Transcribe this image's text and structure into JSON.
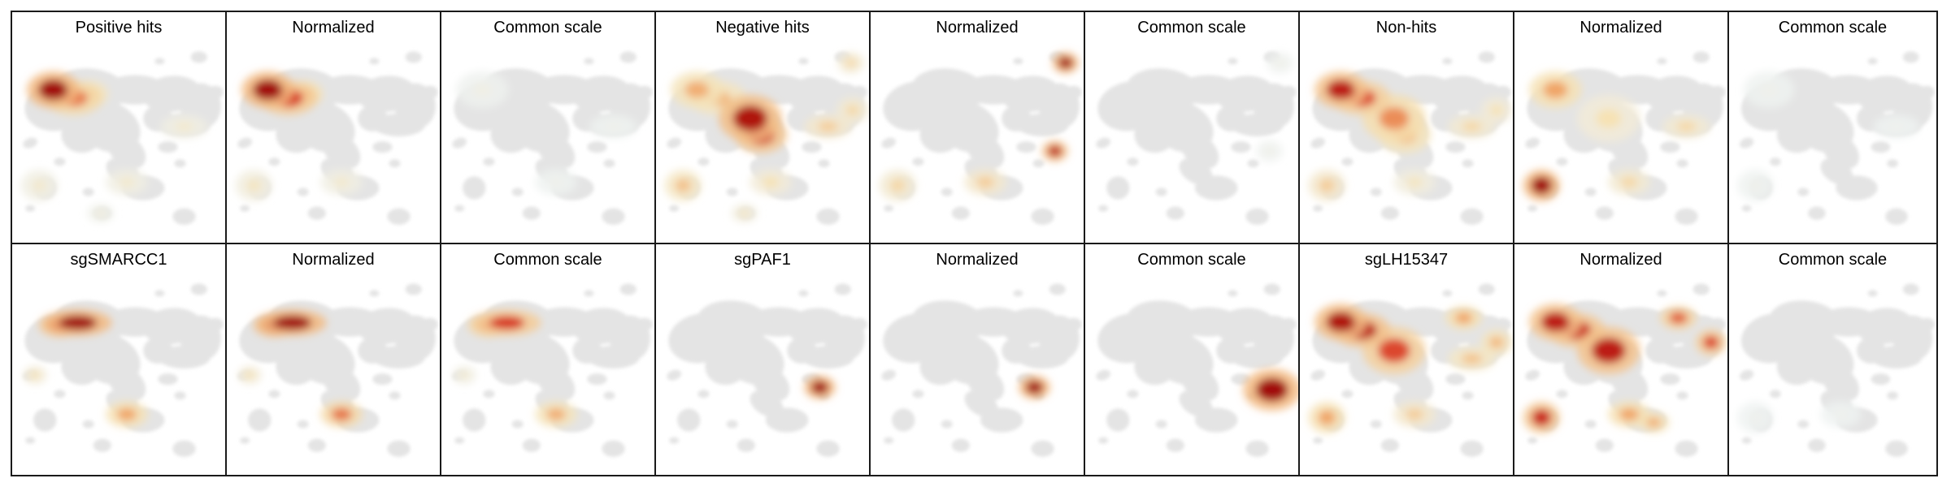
{
  "figure": {
    "rows": [
      [
        {
          "title": "Positive hits",
          "hotspots": [
            {
              "blob": "tl1",
              "level": 1.0
            },
            {
              "blob": "tl2",
              "level": 0.65
            },
            {
              "blob": "tl3",
              "level": 0.45
            },
            {
              "blob": "cm1",
              "level": 0.15
            },
            {
              "blob": "rl1",
              "level": 0.15
            },
            {
              "blob": "ll1",
              "level": 0.15
            },
            {
              "blob": "bt1",
              "level": 0.1
            }
          ]
        },
        {
          "title": "Normalized",
          "hotspots": [
            {
              "blob": "tl1",
              "level": 1.0
            },
            {
              "blob": "tl2",
              "level": 0.8
            },
            {
              "blob": "tl3",
              "level": 0.55
            },
            {
              "blob": "ll1",
              "level": 0.2
            },
            {
              "blob": "cm1",
              "level": 0.15
            }
          ]
        },
        {
          "title": "Common scale",
          "hotspots": [
            {
              "blob": "tl1",
              "level": 0.06
            },
            {
              "blob": "cm1",
              "level": 0.04
            },
            {
              "blob": "rl1",
              "level": 0.04
            }
          ]
        },
        {
          "title": "Negative hits",
          "hotspots": [
            {
              "blob": "cc1",
              "level": 0.95
            },
            {
              "blob": "cc2",
              "level": 0.85
            },
            {
              "blob": "tl1",
              "level": 0.5
            },
            {
              "blob": "tl2",
              "level": 0.45
            },
            {
              "blob": "rl1",
              "level": 0.35
            },
            {
              "blob": "rl2",
              "level": 0.3
            },
            {
              "blob": "tr1",
              "level": 0.3
            },
            {
              "blob": "ll1",
              "level": 0.4
            },
            {
              "blob": "cm1",
              "level": 0.25
            },
            {
              "blob": "bt1",
              "level": 0.2
            }
          ]
        },
        {
          "title": "Normalized",
          "hotspots": [
            {
              "blob": "tr1",
              "level": 1.0
            },
            {
              "blob": "rs1",
              "level": 0.9
            },
            {
              "blob": "cm1",
              "level": 0.35
            },
            {
              "blob": "ll1",
              "level": 0.3
            }
          ]
        },
        {
          "title": "Common scale",
          "hotspots": [
            {
              "blob": "tr1",
              "level": 0.05
            },
            {
              "blob": "rs1",
              "level": 0.05
            }
          ]
        },
        {
          "title": "Non-hits",
          "hotspots": [
            {
              "blob": "tl1",
              "level": 0.9
            },
            {
              "blob": "tl2",
              "level": 0.75
            },
            {
              "blob": "cc1",
              "level": 0.6
            },
            {
              "blob": "cc2",
              "level": 0.5
            },
            {
              "blob": "ll1",
              "level": 0.35
            },
            {
              "blob": "rl1",
              "level": 0.3
            },
            {
              "blob": "rl2",
              "level": 0.25
            },
            {
              "blob": "cm1",
              "level": 0.2
            }
          ]
        },
        {
          "title": "Normalized",
          "hotspots": [
            {
              "blob": "ll1",
              "level": 1.0
            },
            {
              "blob": "tl1",
              "level": 0.55
            },
            {
              "blob": "rl1",
              "level": 0.3
            },
            {
              "blob": "cm1",
              "level": 0.3
            },
            {
              "blob": "cc1",
              "level": 0.25
            }
          ]
        },
        {
          "title": "Common scale",
          "hotspots": [
            {
              "blob": "tl1",
              "level": 0.04
            },
            {
              "blob": "ll1",
              "level": 0.04
            },
            {
              "blob": "rl1",
              "level": 0.03
            }
          ]
        }
      ],
      [
        {
          "title": "sgSMARCC1",
          "hotspots": [
            {
              "blob": "tb1",
              "level": 1.0
            },
            {
              "blob": "tb2",
              "level": 0.85
            },
            {
              "blob": "cm1",
              "level": 0.55
            },
            {
              "blob": "ll2",
              "level": 0.25
            }
          ]
        },
        {
          "title": "Normalized",
          "hotspots": [
            {
              "blob": "tb1",
              "level": 1.0
            },
            {
              "blob": "tb2",
              "level": 0.95
            },
            {
              "blob": "cm1",
              "level": 0.65
            },
            {
              "blob": "ll2",
              "level": 0.25
            }
          ]
        },
        {
          "title": "Common scale",
          "hotspots": [
            {
              "blob": "tb1",
              "level": 0.8
            },
            {
              "blob": "tb2",
              "level": 0.7
            },
            {
              "blob": "cm1",
              "level": 0.5
            },
            {
              "blob": "ll2",
              "level": 0.15
            }
          ]
        },
        {
          "title": "sgPAF1",
          "hotspots": [
            {
              "blob": "rs2",
              "level": 1.0
            }
          ]
        },
        {
          "title": "Normalized",
          "hotspots": [
            {
              "blob": "rs2",
              "level": 1.0
            }
          ]
        },
        {
          "title": "Common scale",
          "hotspots": [
            {
              "blob": "rs3",
              "level": 1.0
            }
          ]
        },
        {
          "title": "sgLH15347",
          "hotspots": [
            {
              "blob": "tl1",
              "level": 0.95
            },
            {
              "blob": "tl2",
              "level": 0.9
            },
            {
              "blob": "cc1",
              "level": 0.75
            },
            {
              "blob": "tr2",
              "level": 0.55
            },
            {
              "blob": "rl2",
              "level": 0.45
            },
            {
              "blob": "rl1",
              "level": 0.4
            },
            {
              "blob": "ll1",
              "level": 0.55
            },
            {
              "blob": "cm1",
              "level": 0.35
            }
          ]
        },
        {
          "title": "Normalized",
          "hotspots": [
            {
              "blob": "tl1",
              "level": 0.9
            },
            {
              "blob": "tl2",
              "level": 0.85
            },
            {
              "blob": "cc1",
              "level": 0.9
            },
            {
              "blob": "tr2",
              "level": 0.7
            },
            {
              "blob": "rl2",
              "level": 0.75
            },
            {
              "blob": "ll1",
              "level": 0.85
            },
            {
              "blob": "cm1",
              "level": 0.55
            },
            {
              "blob": "cm2",
              "level": 0.5
            }
          ]
        },
        {
          "title": "Common scale",
          "hotspots": [
            {
              "blob": "cm1",
              "level": 0.03
            },
            {
              "blob": "ll1",
              "level": 0.03
            }
          ]
        }
      ]
    ]
  },
  "colors": {
    "background_cells": "#e4e4e4",
    "low": "#eef3f5",
    "pale": "#f6e2b4",
    "mid": "#f0a466",
    "high": "#d7301f",
    "max": "#a10c0c"
  }
}
